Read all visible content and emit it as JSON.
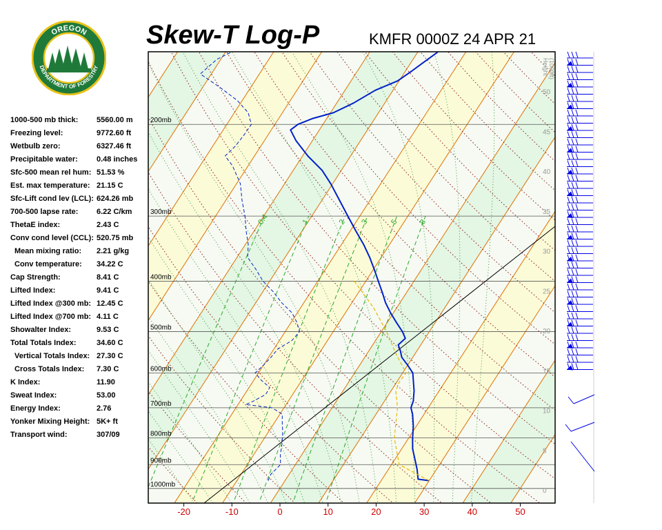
{
  "header": {
    "title": "Skew-T Log-P",
    "station_time": "KMFR 0000Z 24 APR 21"
  },
  "logo": {
    "top_text": "OREGON",
    "bottom_text": "DEPARTMENT OF FORESTRY",
    "ring_color": "#1f7a3a",
    "gold_color": "#e8c21a"
  },
  "indices": [
    {
      "label": "1000-500 mb thick:",
      "value": "5560.00 m",
      "indent": false
    },
    {
      "label": "Freezing level:",
      "value": "9772.60 ft",
      "indent": false
    },
    {
      "label": "Wetbulb zero:",
      "value": "6327.46 ft",
      "indent": false
    },
    {
      "label": "Precipitable water:",
      "value": "0.48 inches",
      "indent": false
    },
    {
      "label": "Sfc-500 mean rel hum:",
      "value": "51.53 %",
      "indent": false
    },
    {
      "label": "Est. max temperature:",
      "value": "21.15 C",
      "indent": false
    },
    {
      "label": "Sfc-Lift cond lev (LCL):",
      "value": "624.26 mb",
      "indent": false
    },
    {
      "label": "700-500 lapse rate:",
      "value": "6.22 C/km",
      "indent": false
    },
    {
      "label": "ThetaE index:",
      "value": "2.43 C",
      "indent": false
    },
    {
      "label": "Conv cond level (CCL):",
      "value": "520.75 mb",
      "indent": false
    },
    {
      "label": "Mean mixing ratio:",
      "value": "2.21 g/kg",
      "indent": true
    },
    {
      "label": "Conv temperature:",
      "value": "34.22 C",
      "indent": true
    },
    {
      "label": "Cap Strength:",
      "value": "8.41 C",
      "indent": false
    },
    {
      "label": "Lifted Index:",
      "value": "9.41 C",
      "indent": false
    },
    {
      "label": "Lifted Index @300 mb:",
      "value": "12.45 C",
      "indent": false
    },
    {
      "label": "Lifted Index @700 mb:",
      "value": "4.11 C",
      "indent": false
    },
    {
      "label": "Showalter Index:",
      "value": "9.53 C",
      "indent": false
    },
    {
      "label": "Total Totals Index:",
      "value": "34.60 C",
      "indent": false
    },
    {
      "label": "Vertical Totals Index:",
      "value": "27.30 C",
      "indent": true
    },
    {
      "label": "Cross Totals Index:",
      "value": "7.30 C",
      "indent": true
    },
    {
      "label": "K Index:",
      "value": "11.90",
      "indent": false
    },
    {
      "label": "Sweat Index:",
      "value": "53.00",
      "indent": false
    },
    {
      "label": "Energy Index:",
      "value": "2.76",
      "indent": false
    },
    {
      "label": "Yonker Mixing Height:",
      "value": "5K+ ft",
      "indent": false
    },
    {
      "label": "Transport wind:",
      "value": "307/09",
      "indent": false
    }
  ],
  "chart_data": {
    "type": "line",
    "title": "Skew-T Log-P",
    "subtitle": "KMFR 0000Z 24 APR 21",
    "x_axis": {
      "unit": "C",
      "ticks": [
        -20,
        -10,
        0,
        10,
        20,
        30,
        40,
        50
      ],
      "color": "#cc0000"
    },
    "pressure_levels": [
      {
        "p": 1000,
        "label": "1000mb"
      },
      {
        "p": 900,
        "label": "900mb"
      },
      {
        "p": 800,
        "label": "800mb"
      },
      {
        "p": 700,
        "label": "700mb"
      },
      {
        "p": 600,
        "label": "600mb"
      },
      {
        "p": 500,
        "label": "500mb"
      },
      {
        "p": 400,
        "label": "400mb"
      },
      {
        "p": 300,
        "label": "300mb"
      },
      {
        "p": 200,
        "label": "200mb"
      }
    ],
    "height_axis": {
      "label_lines": [
        "Height",
        "(1000ft)"
      ],
      "ticks": [
        0,
        5,
        10,
        15,
        20,
        25,
        30,
        35,
        40,
        45,
        50
      ]
    },
    "mixing_ratio_labels": [
      "0.4",
      "1",
      "2",
      "3",
      "5",
      "8"
    ],
    "colors": {
      "temperature": "#0020c8",
      "dewpoint": "#0020c8",
      "parcel": "#e6b800",
      "isotherm": "#e07000",
      "dry_adiabat": "#8b1a1a",
      "moist_adiabat": "#2a8a2a",
      "mixing_ratio": "#2aa82a",
      "wind_barb": "#0000e6",
      "band_yellow": "#fbfbd8",
      "band_green": "#e4f6e4",
      "band_white": "#f6faf2"
    },
    "series": [
      {
        "style": "solid",
        "points": [
          [
            966,
            30.0
          ],
          [
            960,
            27.5
          ],
          [
            920,
            26.0
          ],
          [
            880,
            24.2
          ],
          [
            840,
            22.3
          ],
          [
            800,
            20.8
          ],
          [
            760,
            19.4
          ],
          [
            720,
            17.6
          ],
          [
            700,
            16.4
          ],
          [
            680,
            16.0
          ],
          [
            650,
            14.8
          ],
          [
            600,
            12.1
          ],
          [
            580,
            10.0
          ],
          [
            560,
            7.7
          ],
          [
            545,
            6.6
          ],
          [
            530,
            5.3
          ],
          [
            515,
            5.9
          ],
          [
            500,
            4.4
          ],
          [
            480,
            1.9
          ],
          [
            460,
            -0.6
          ],
          [
            440,
            -3.0
          ],
          [
            420,
            -5.1
          ],
          [
            400,
            -7.4
          ],
          [
            380,
            -9.8
          ],
          [
            360,
            -12.4
          ],
          [
            340,
            -15.4
          ],
          [
            320,
            -18.9
          ],
          [
            300,
            -22.5
          ],
          [
            280,
            -26.3
          ],
          [
            260,
            -30.4
          ],
          [
            245,
            -34.0
          ],
          [
            230,
            -38.9
          ],
          [
            215,
            -43.4
          ],
          [
            205,
            -46.0
          ],
          [
            200,
            -45.2
          ],
          [
            195,
            -43.0
          ],
          [
            190,
            -39.4
          ],
          [
            182,
            -36.5
          ],
          [
            172,
            -33.7
          ],
          [
            165,
            -30.3
          ],
          [
            158,
            -28.7
          ],
          [
            152,
            -27.4
          ],
          [
            146,
            -26.0
          ],
          [
            140,
            -25.2
          ],
          [
            134,
            -23.7
          ]
        ]
      },
      {
        "style": "dashed",
        "points": [
          [
            966,
            -3.5
          ],
          [
            940,
            -3.8
          ],
          [
            900,
            -3.1
          ],
          [
            860,
            -4.5
          ],
          [
            820,
            -5.6
          ],
          [
            780,
            -7.0
          ],
          [
            740,
            -8.7
          ],
          [
            720,
            -9.5
          ],
          [
            700,
            -12.5
          ],
          [
            690,
            -18.4
          ],
          [
            680,
            -17.3
          ],
          [
            660,
            -15.6
          ],
          [
            640,
            -15.7
          ],
          [
            620,
            -18.4
          ],
          [
            600,
            -20.7
          ],
          [
            580,
            -20.0
          ],
          [
            560,
            -19.5
          ],
          [
            540,
            -19.2
          ],
          [
            520,
            -17.4
          ],
          [
            500,
            -17.0
          ],
          [
            480,
            -18.8
          ],
          [
            460,
            -21.1
          ],
          [
            440,
            -24.6
          ],
          [
            420,
            -27.7
          ],
          [
            400,
            -31.4
          ],
          [
            380,
            -34.4
          ],
          [
            360,
            -37.8
          ],
          [
            340,
            -39.4
          ],
          [
            320,
            -41.7
          ],
          [
            300,
            -43.9
          ],
          [
            280,
            -46.6
          ],
          [
            260,
            -49.2
          ],
          [
            240,
            -53.3
          ],
          [
            230,
            -56.1
          ],
          [
            220,
            -55.3
          ],
          [
            210,
            -55.0
          ],
          [
            200,
            -54.9
          ],
          [
            190,
            -57.1
          ],
          [
            180,
            -61.0
          ],
          [
            170,
            -66.3
          ],
          [
            160,
            -72.3
          ],
          [
            150,
            -70.8
          ],
          [
            140,
            -66.3
          ],
          [
            134,
            -64.8
          ]
        ]
      },
      {
        "style": "dashed-parcel",
        "points": [
          [
            966,
            30.0
          ],
          [
            900,
            21.6
          ],
          [
            800,
            17.0
          ],
          [
            700,
            13.6
          ],
          [
            650,
            11.0
          ],
          [
            624,
            10.5
          ],
          [
            600,
            10.7
          ],
          [
            550,
            5.9
          ],
          [
            500,
            1.1
          ],
          [
            450,
            -4.8
          ],
          [
            400,
            -12.4
          ]
        ]
      }
    ]
  }
}
